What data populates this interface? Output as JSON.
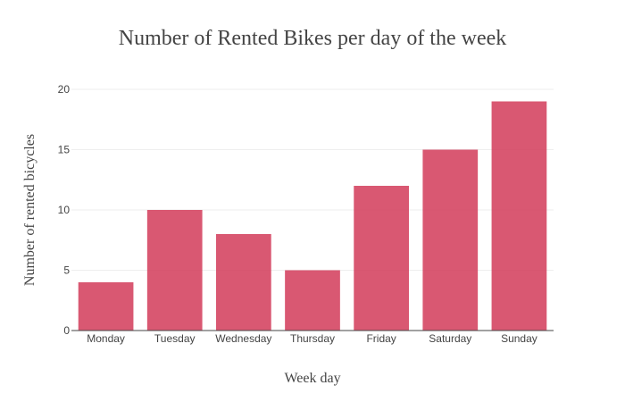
{
  "chart_data": {
    "type": "bar",
    "title": "Number of Rented Bikes per day of the week",
    "xlabel": "Week day",
    "ylabel": "Number of rented bicycles",
    "categories": [
      "Monday",
      "Tuesday",
      "Wednesday",
      "Thursday",
      "Friday",
      "Saturday",
      "Sunday"
    ],
    "values": [
      4,
      10,
      8,
      5,
      12,
      15,
      19
    ],
    "ylim": [
      0,
      20
    ],
    "yticks": [
      0,
      5,
      10,
      15,
      20
    ],
    "grid": true,
    "colors": {
      "bar": "#d4415f"
    }
  }
}
